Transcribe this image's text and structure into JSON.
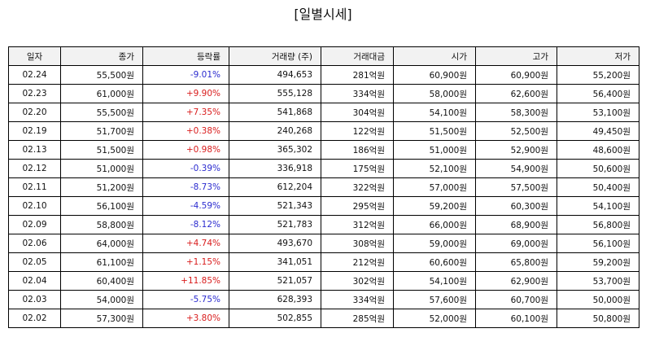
{
  "title": "[일별시세]",
  "columns": [
    "일자",
    "종가",
    "등락률",
    "거래량 (주)",
    "거래대금",
    "시가",
    "고가",
    "저가"
  ],
  "colors": {
    "up": "#d91c1c",
    "down": "#2b2bcf"
  },
  "rows": [
    {
      "date": "02.24",
      "close": "55,500원",
      "change": "-9.01%",
      "dir": "down",
      "volume": "494,653",
      "amount": "281억원",
      "open": "60,900원",
      "high": "60,900원",
      "low": "55,200원"
    },
    {
      "date": "02.23",
      "close": "61,000원",
      "change": "+9.90%",
      "dir": "up",
      "volume": "555,128",
      "amount": "334억원",
      "open": "58,000원",
      "high": "62,600원",
      "low": "56,400원"
    },
    {
      "date": "02.20",
      "close": "55,500원",
      "change": "+7.35%",
      "dir": "up",
      "volume": "541,868",
      "amount": "304억원",
      "open": "54,100원",
      "high": "58,300원",
      "low": "53,100원"
    },
    {
      "date": "02.19",
      "close": "51,700원",
      "change": "+0.38%",
      "dir": "up",
      "volume": "240,268",
      "amount": "122억원",
      "open": "51,500원",
      "high": "52,500원",
      "low": "49,450원"
    },
    {
      "date": "02.13",
      "close": "51,500원",
      "change": "+0.98%",
      "dir": "up",
      "volume": "365,302",
      "amount": "186억원",
      "open": "51,000원",
      "high": "52,900원",
      "low": "48,600원"
    },
    {
      "date": "02.12",
      "close": "51,000원",
      "change": "-0.39%",
      "dir": "down",
      "volume": "336,918",
      "amount": "175억원",
      "open": "52,100원",
      "high": "54,900원",
      "low": "50,600원"
    },
    {
      "date": "02.11",
      "close": "51,200원",
      "change": "-8.73%",
      "dir": "down",
      "volume": "612,204",
      "amount": "322억원",
      "open": "57,000원",
      "high": "57,500원",
      "low": "50,400원"
    },
    {
      "date": "02.10",
      "close": "56,100원",
      "change": "-4.59%",
      "dir": "down",
      "volume": "521,343",
      "amount": "295억원",
      "open": "59,200원",
      "high": "60,300원",
      "low": "54,100원"
    },
    {
      "date": "02.09",
      "close": "58,800원",
      "change": "-8.12%",
      "dir": "down",
      "volume": "521,783",
      "amount": "312억원",
      "open": "66,000원",
      "high": "68,900원",
      "low": "56,800원"
    },
    {
      "date": "02.06",
      "close": "64,000원",
      "change": "+4.74%",
      "dir": "up",
      "volume": "493,670",
      "amount": "308억원",
      "open": "59,000원",
      "high": "69,000원",
      "low": "56,100원"
    },
    {
      "date": "02.05",
      "close": "61,100원",
      "change": "+1.15%",
      "dir": "up",
      "volume": "341,051",
      "amount": "212억원",
      "open": "60,600원",
      "high": "65,800원",
      "low": "59,200원"
    },
    {
      "date": "02.04",
      "close": "60,400원",
      "change": "+11.85%",
      "dir": "up",
      "volume": "521,057",
      "amount": "302억원",
      "open": "54,100원",
      "high": "62,900원",
      "low": "53,700원"
    },
    {
      "date": "02.03",
      "close": "54,000원",
      "change": "-5.75%",
      "dir": "down",
      "volume": "628,393",
      "amount": "334억원",
      "open": "57,600원",
      "high": "60,700원",
      "low": "50,000원"
    },
    {
      "date": "02.02",
      "close": "57,300원",
      "change": "+3.80%",
      "dir": "up",
      "volume": "502,855",
      "amount": "285억원",
      "open": "52,000원",
      "high": "60,100원",
      "low": "50,800원"
    }
  ]
}
